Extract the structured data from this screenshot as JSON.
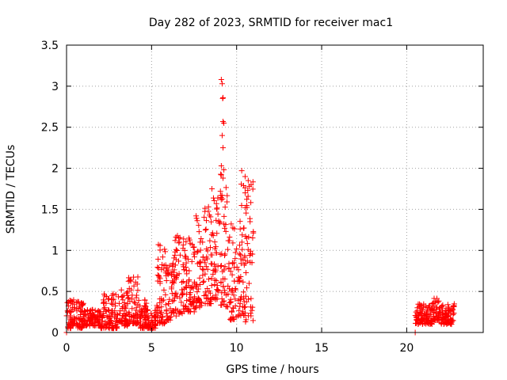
{
  "chart_data": {
    "type": "scatter",
    "title": "Day 282 of 2023, SRMTID for receiver mac1",
    "xlabel": "GPS time / hours",
    "ylabel": "SRMTID / TECUs",
    "xlim": [
      0,
      24.5
    ],
    "ylim": [
      0,
      3.5
    ],
    "xticks": [
      0,
      5,
      10,
      15,
      20
    ],
    "xtick_labels": [
      "0",
      "5",
      "10",
      "15",
      "20"
    ],
    "yticks": [
      0,
      0.5,
      1,
      1.5,
      2,
      2.5,
      3,
      3.5
    ],
    "ytick_labels": [
      "0",
      "0.5",
      "1",
      "1.5",
      "2",
      "2.5",
      "3",
      "3.5"
    ],
    "grid": true,
    "marker": "+",
    "colors": {
      "series": "#ff0000",
      "grid": "#a0a0a0",
      "axis": "#000000"
    },
    "series": [
      {
        "name": "SRMTID",
        "note": "approximate envelope of dense scatter: [x_start, x_end, y_low, y_high] in data units; points fill each band",
        "bands": [
          [
            0.0,
            0.5,
            0.05,
            0.42
          ],
          [
            0.5,
            1.0,
            0.05,
            0.38
          ],
          [
            1.0,
            2.0,
            0.08,
            0.28
          ],
          [
            2.0,
            3.0,
            0.05,
            0.48
          ],
          [
            3.0,
            3.6,
            0.08,
            0.52
          ],
          [
            3.6,
            4.2,
            0.1,
            0.68
          ],
          [
            4.2,
            4.7,
            0.05,
            0.4
          ],
          [
            4.7,
            5.3,
            0.05,
            0.28
          ],
          [
            5.3,
            5.8,
            0.1,
            1.08
          ],
          [
            5.8,
            6.3,
            0.15,
            0.85
          ],
          [
            6.3,
            7.0,
            0.2,
            1.18
          ],
          [
            7.0,
            7.6,
            0.25,
            1.15
          ],
          [
            7.6,
            8.1,
            0.3,
            1.45
          ],
          [
            8.1,
            8.6,
            0.35,
            1.55
          ],
          [
            8.6,
            9.0,
            0.4,
            1.7
          ],
          [
            9.0,
            9.6,
            0.3,
            2.1
          ],
          [
            9.6,
            10.0,
            0.15,
            1.4
          ],
          [
            10.0,
            10.5,
            0.2,
            1.95
          ],
          [
            10.5,
            11.0,
            0.12,
            1.85
          ],
          [
            20.5,
            21.5,
            0.1,
            0.35
          ],
          [
            21.5,
            22.0,
            0.15,
            0.42
          ],
          [
            22.0,
            22.8,
            0.1,
            0.35
          ]
        ],
        "highlights": [
          [
            9.1,
            3.08
          ],
          [
            9.15,
            3.03
          ],
          [
            9.2,
            2.86
          ],
          [
            9.18,
            2.85
          ],
          [
            9.2,
            2.57
          ],
          [
            9.25,
            2.55
          ],
          [
            9.15,
            2.4
          ],
          [
            9.2,
            2.25
          ],
          [
            9.1,
            2.03
          ],
          [
            9.1,
            1.92
          ],
          [
            9.2,
            1.88
          ],
          [
            10.3,
            1.97
          ],
          [
            10.5,
            1.9
          ],
          [
            10.85,
            1.8
          ],
          [
            10.5,
            1.7
          ],
          [
            8.55,
            1.75
          ],
          [
            5.4,
            1.07
          ],
          [
            5.5,
            1.06
          ],
          [
            0.0,
            0.0
          ],
          [
            20.5,
            0.0
          ]
        ]
      }
    ]
  }
}
